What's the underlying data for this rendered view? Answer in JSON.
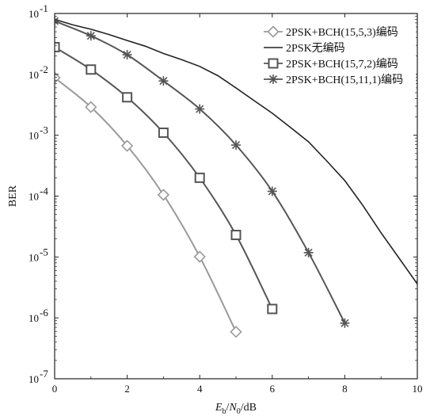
{
  "chart_data": {
    "type": "line",
    "title": "",
    "xlabel": "E_b/N_0/dB",
    "ylabel": "BER",
    "xlim": [
      0,
      10
    ],
    "ylim": [
      1e-07,
      0.1
    ],
    "yscale": "log",
    "grid": false,
    "legend_position": "top-right",
    "x_ticks": [
      "0",
      "2",
      "4",
      "6",
      "8",
      "10"
    ],
    "y_ticks": [
      {
        "base": "10",
        "exp": "-7",
        "value": 1e-07
      },
      {
        "base": "10",
        "exp": "-6",
        "value": 1e-06
      },
      {
        "base": "10",
        "exp": "-5",
        "value": 1e-05
      },
      {
        "base": "10",
        "exp": "-4",
        "value": 0.0001
      },
      {
        "base": "10",
        "exp": "-3",
        "value": 0.001
      },
      {
        "base": "10",
        "exp": "-2",
        "value": 0.01
      },
      {
        "base": "10",
        "exp": "-1",
        "value": 0.1
      }
    ],
    "series": [
      {
        "name": "2PSK+BCH(15,5,3)编码",
        "marker": "diamond",
        "color": "#9a9a9a",
        "x": [
          0,
          1,
          2,
          3,
          4,
          5
        ],
        "y": [
          0.0088,
          0.0029,
          0.00067,
          0.000105,
          1.01e-05,
          5.9e-07
        ]
      },
      {
        "name": "2PSK无编码",
        "marker": "none",
        "color": "#222222",
        "x": [
          0,
          0.5,
          1,
          1.5,
          2,
          2.5,
          3,
          3.5,
          4,
          4.5,
          5,
          5.5,
          6,
          6.5,
          7,
          7.5,
          8,
          8.5,
          9,
          9.5,
          10
        ],
        "y": [
          0.08,
          0.065,
          0.055,
          0.045,
          0.036,
          0.029,
          0.022,
          0.0175,
          0.0135,
          0.0095,
          0.006,
          0.0037,
          0.0023,
          0.00135,
          0.00078,
          0.00038,
          0.00018,
          7e-05,
          2.5e-05,
          9.5e-06,
          3.6e-06
        ]
      },
      {
        "name": "2PSK+BCH(15,7,2)编码",
        "marker": "square",
        "color": "#555555",
        "x": [
          0,
          1,
          2,
          3,
          4,
          5,
          6
        ],
        "y": [
          0.028,
          0.012,
          0.0042,
          0.0011,
          0.0002,
          2.3e-05,
          1.4e-06
        ]
      },
      {
        "name": "2PSK+BCH(15,11,1)编码",
        "marker": "star",
        "color": "#555555",
        "x": [
          0,
          1,
          2,
          3,
          4,
          5,
          6,
          7,
          8
        ],
        "y": [
          0.075,
          0.043,
          0.021,
          0.0078,
          0.0027,
          0.00069,
          0.00012,
          1.18e-05,
          8.2e-07
        ]
      }
    ]
  }
}
